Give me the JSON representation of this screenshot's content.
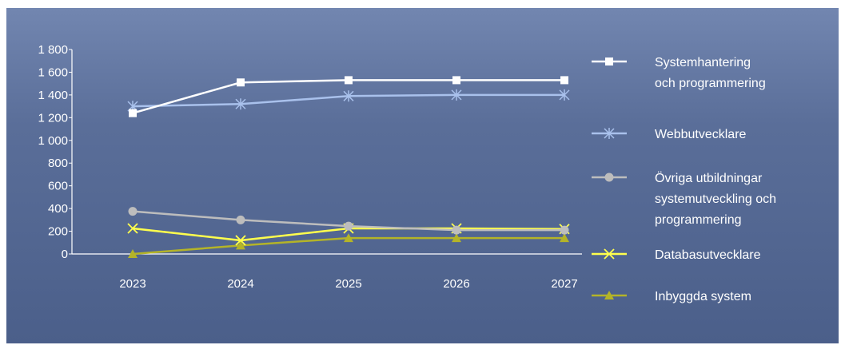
{
  "chart_data": {
    "type": "line",
    "title": "",
    "xlabel": "",
    "ylabel": "",
    "x": [
      "2023",
      "2024",
      "2025",
      "2026",
      "2027"
    ],
    "ylim": [
      0,
      1800
    ],
    "yticks": [
      0,
      200,
      400,
      600,
      800,
      1000,
      1200,
      1400,
      1600,
      1800
    ],
    "ytick_labels": [
      "0",
      "200",
      "400",
      "600",
      "800",
      "1 000",
      "1 200",
      "1 400",
      "1 600",
      "1 800"
    ],
    "grid": false,
    "legend_position": "right",
    "series": [
      {
        "name": "Systemhantering och programmering",
        "name_lines": [
          "Systemhantering",
          "och programmering"
        ],
        "values": [
          1240,
          1510,
          1530,
          1530,
          1530
        ],
        "color": "#ffffff",
        "marker": "square"
      },
      {
        "name": "Webbutvecklare",
        "name_lines": [
          "Webbutvecklare"
        ],
        "values": [
          1300,
          1320,
          1390,
          1400,
          1400
        ],
        "color": "#a9c1ec",
        "marker": "asterisk"
      },
      {
        "name": "Övriga utbildningar systemutveckling och programmering",
        "name_lines": [
          "Övriga utbildningar",
          "systemutveckling och",
          "programmering"
        ],
        "values": [
          375,
          300,
          245,
          210,
          210
        ],
        "color": "#bdbdbd",
        "marker": "circle"
      },
      {
        "name": "Databasutvecklare",
        "name_lines": [
          "Databasutvecklare"
        ],
        "values": [
          225,
          120,
          225,
          225,
          220
        ],
        "color": "#ffff4d",
        "marker": "x"
      },
      {
        "name": "Inbyggda system",
        "name_lines": [
          "Inbyggda system"
        ],
        "values": [
          0,
          75,
          140,
          140,
          140
        ],
        "color": "#b4b428",
        "marker": "triangle"
      }
    ]
  }
}
